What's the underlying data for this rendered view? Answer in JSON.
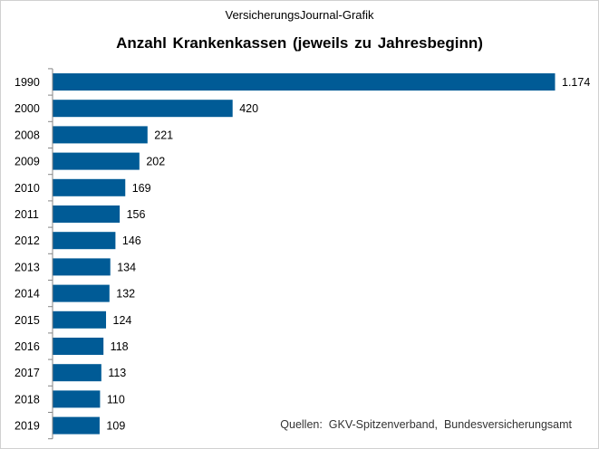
{
  "header": {
    "supertitle": "VersicherungsJournal-Grafik",
    "title": "Anzahl  Krankenkassen  (jeweils zu Jahresbeginn)"
  },
  "footer": {
    "source": "Quellen:  GKV-Spitzenverband,  Bundesversicherungsamt"
  },
  "colors": {
    "bar": "#005b96",
    "axis": "#868686"
  },
  "chart_data": {
    "type": "bar",
    "orientation": "horizontal",
    "title": "Anzahl  Krankenkassen  (jeweils zu Jahresbeginn)",
    "categories": [
      "1990",
      "2000",
      "2008",
      "2009",
      "2010",
      "2011",
      "2012",
      "2013",
      "2014",
      "2015",
      "2016",
      "2017",
      "2018",
      "2019"
    ],
    "values": [
      1174,
      420,
      221,
      202,
      169,
      156,
      146,
      134,
      132,
      124,
      118,
      113,
      110,
      109
    ],
    "value_labels": [
      "1.174",
      "420",
      "221",
      "202",
      "169",
      "156",
      "146",
      "134",
      "132",
      "124",
      "118",
      "113",
      "110",
      "109"
    ],
    "xlim": [
      0,
      1174
    ],
    "grid": false,
    "legend": "none"
  }
}
